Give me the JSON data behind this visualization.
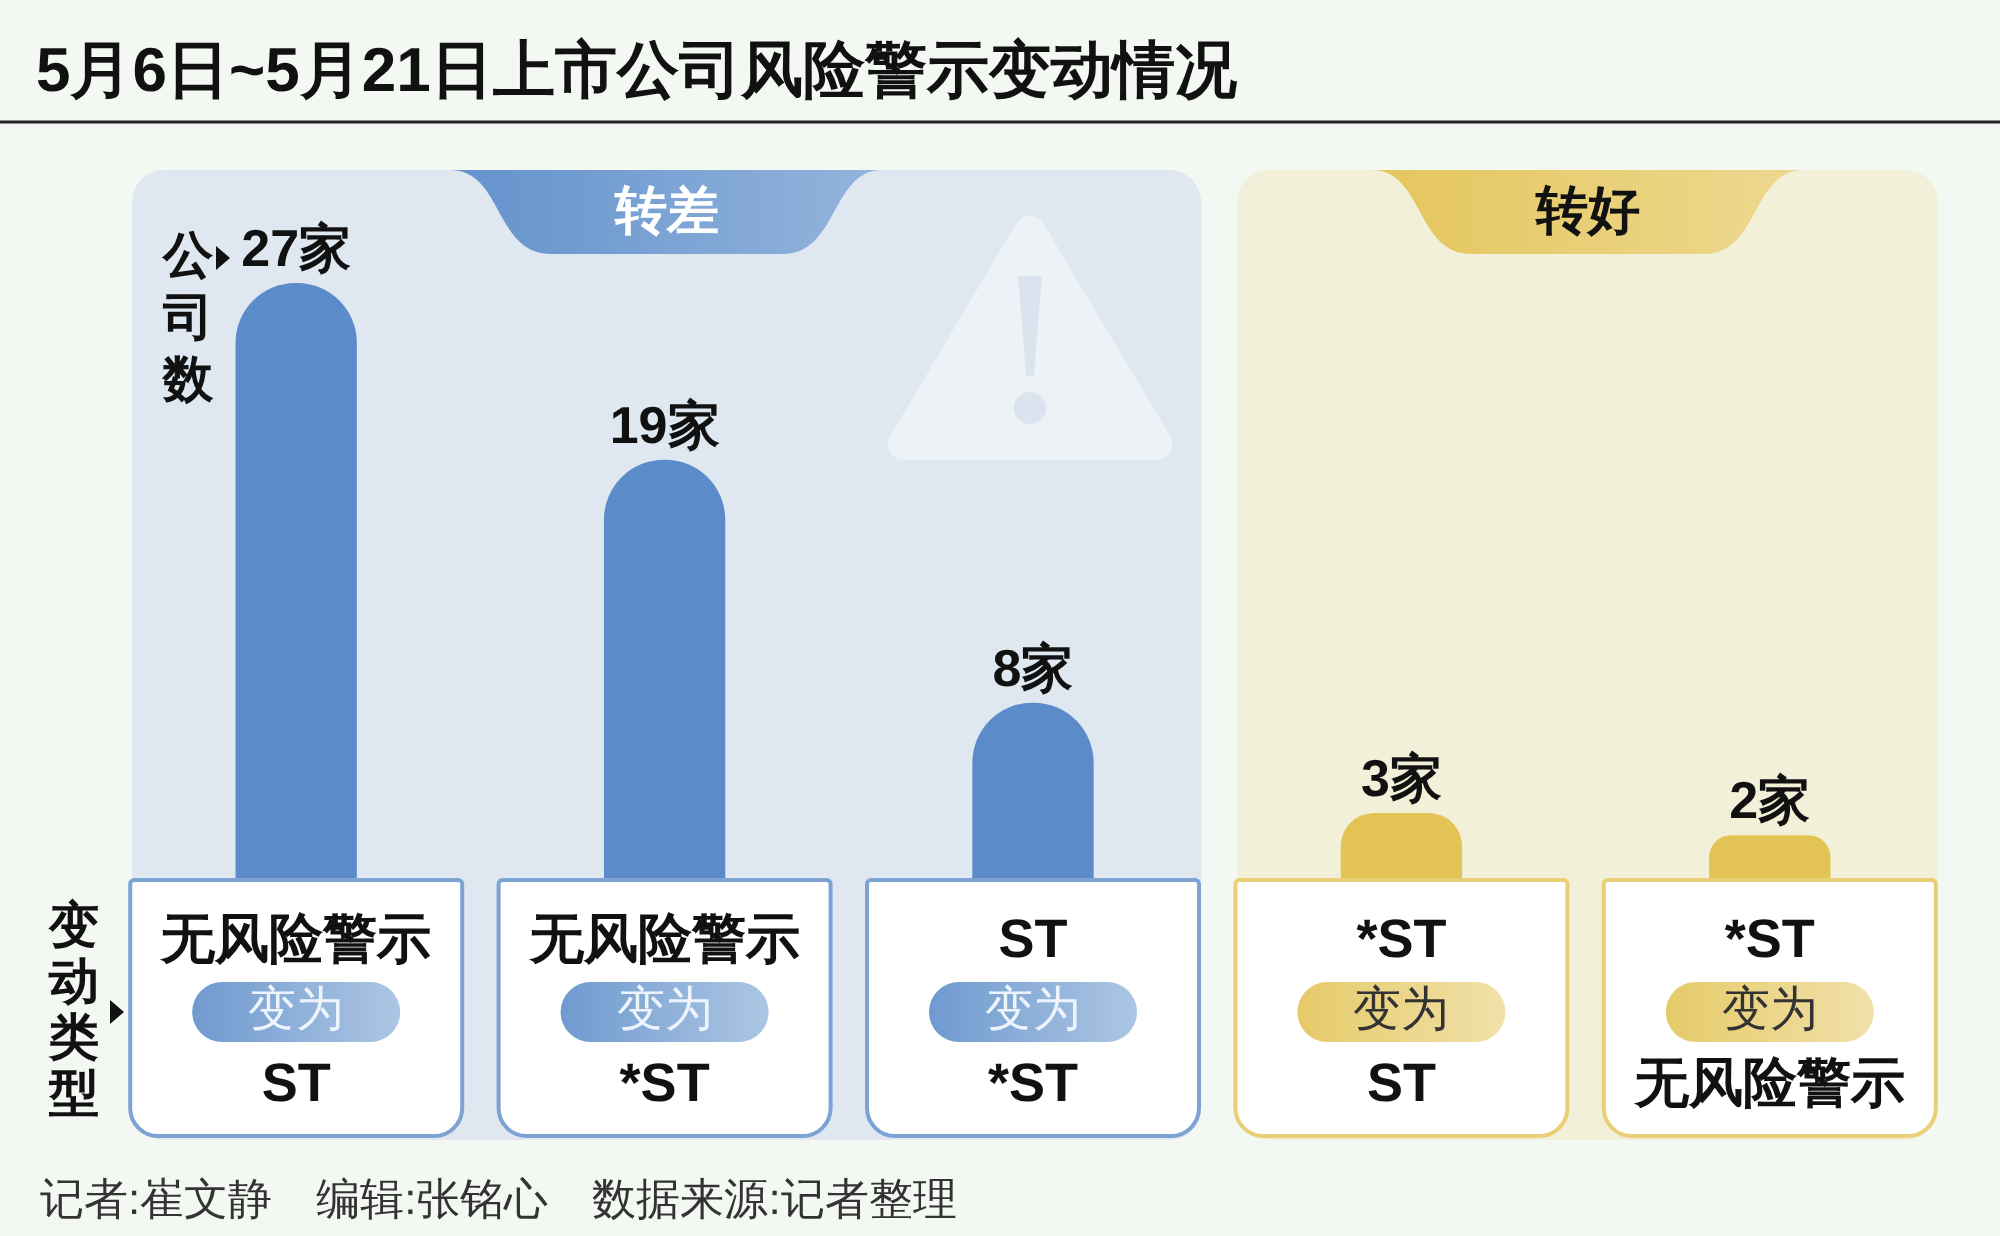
{
  "chart_data": {
    "type": "bar",
    "title": "5月6日~5月21日上市公司风险警示变动情况",
    "ylabel": "公司数",
    "xlabel": "变动类型",
    "categories": [
      "无风险警示变为ST",
      "无风险警示变为*ST",
      "ST变为*ST",
      "*ST变为ST",
      "*ST变为无风险警示"
    ],
    "values": [
      27,
      19,
      8,
      3,
      2
    ],
    "value_labels": [
      "27家",
      "19家",
      "8家",
      "3家",
      "2家"
    ],
    "colors": [
      "#5b8cc9",
      "#5b8cc9",
      "#5b8cc9",
      "#e3c354",
      "#e3c354"
    ],
    "bands": [
      {
        "axis": "x",
        "from": "无风险警示变为ST",
        "to": "ST变为*ST",
        "label": "转差",
        "color": "#dfe8f1"
      },
      {
        "axis": "x",
        "from": "*ST变为ST",
        "to": "*ST变为无风险警示",
        "label": "转好",
        "color": "#f3f0da"
      }
    ],
    "annotations": [
      "记者:崔文静　编辑:张铭心　数据来源:记者整理"
    ]
  }
}
